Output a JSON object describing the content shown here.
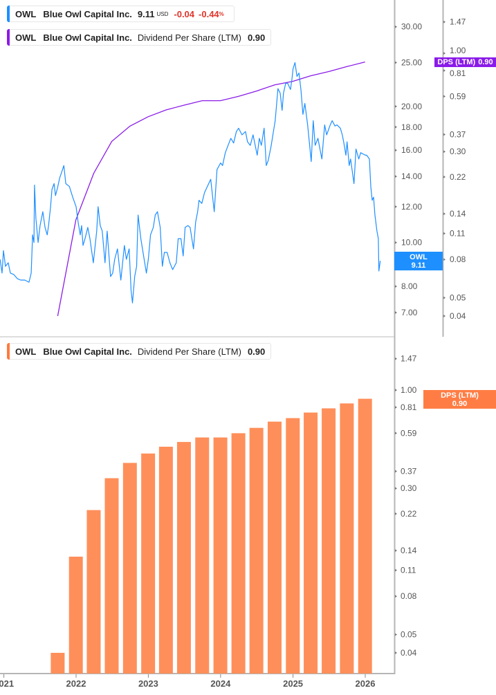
{
  "legends": {
    "price": {
      "ticker": "OWL",
      "company": "Blue Owl Capital Inc.",
      "price": "9.11",
      "currency": "USD",
      "change": "-0.04",
      "change_pct": "-0.44",
      "pct_sign": "%",
      "color": "#1e8fff"
    },
    "dps_top": {
      "ticker": "OWL",
      "company": "Blue Owl Capital Inc.",
      "metric": "Dividend Per Share (LTM)",
      "value": "0.90",
      "color": "#8a1be8"
    },
    "dps_bottom": {
      "ticker": "OWL",
      "company": "Blue Owl Capital Inc.",
      "metric": "Dividend Per Share (LTM)",
      "value": "0.90",
      "color": "#ff7a3d"
    }
  },
  "tags": {
    "price": {
      "label": "OWL",
      "value": "9.11",
      "color": "#1e8fff"
    },
    "dps_top": {
      "label": "DPS (LTM)",
      "value": "0.90",
      "color": "#8a1be8"
    },
    "dps_bottom": {
      "label": "DPS (LTM)",
      "value": "0.90",
      "color": "#ff7d45"
    }
  },
  "chart_data": [
    {
      "type": "line",
      "title": "",
      "scale": "log",
      "series": [
        {
          "name": "OWL",
          "color": "#1e8fff",
          "axis": "price",
          "points": [
            [
              "2020-12-13",
              9.18
            ],
            [
              "2020-12-23",
              8.56
            ],
            [
              "2020-12-30",
              9.6
            ],
            [
              "2021-01-09",
              8.86
            ],
            [
              "2021-01-23",
              9.02
            ],
            [
              "2021-02-03",
              8.56
            ],
            [
              "2021-02-20",
              8.5
            ],
            [
              "2021-03-10",
              8.32
            ],
            [
              "2021-03-27",
              8.26
            ],
            [
              "2021-04-17",
              8.26
            ],
            [
              "2021-05-08",
              8.17
            ],
            [
              "2021-05-19",
              8.56
            ],
            [
              "2021-05-26",
              10.4
            ],
            [
              "2021-06-02",
              10.0
            ],
            [
              "2021-06-05",
              13.4
            ],
            [
              "2021-06-12",
              11.3
            ],
            [
              "2021-06-23",
              10.0
            ],
            [
              "2021-07-03",
              10.9
            ],
            [
              "2021-07-17",
              11.7
            ],
            [
              "2021-07-28",
              10.8
            ],
            [
              "2021-08-08",
              10.4
            ],
            [
              "2021-08-15",
              10.9
            ],
            [
              "2021-08-25",
              12.0
            ],
            [
              "2021-09-01",
              13.1
            ],
            [
              "2021-09-12",
              13.5
            ],
            [
              "2021-09-19",
              12.7
            ],
            [
              "2021-09-29",
              13.2
            ],
            [
              "2021-10-10",
              13.9
            ],
            [
              "2021-10-20",
              14.3
            ],
            [
              "2021-10-31",
              14.8
            ],
            [
              "2021-11-10",
              13.5
            ],
            [
              "2021-11-28",
              13.3
            ],
            [
              "2021-12-15",
              12.6
            ],
            [
              "2022-01-01",
              12.0
            ],
            [
              "2022-01-11",
              11.1
            ],
            [
              "2022-01-22",
              10.4
            ],
            [
              "2022-01-29",
              10.9
            ],
            [
              "2022-02-05",
              9.85
            ],
            [
              "2022-02-15",
              10.2
            ],
            [
              "2022-03-01",
              10.8
            ],
            [
              "2022-03-12",
              10.2
            ],
            [
              "2022-03-29",
              9.02
            ],
            [
              "2022-04-15",
              10.6
            ],
            [
              "2022-04-22",
              12.0
            ],
            [
              "2022-05-03",
              10.9
            ],
            [
              "2022-05-13",
              10.6
            ],
            [
              "2022-05-27",
              9.02
            ],
            [
              "2022-06-07",
              10.6
            ],
            [
              "2022-06-24",
              8.41
            ],
            [
              "2022-07-05",
              8.56
            ],
            [
              "2022-07-15",
              9.18
            ],
            [
              "2022-07-29",
              9.68
            ],
            [
              "2022-08-15",
              8.26
            ],
            [
              "2022-09-02",
              9.85
            ],
            [
              "2022-09-12",
              9.18
            ],
            [
              "2022-09-26",
              9.68
            ],
            [
              "2022-10-06",
              7.83
            ],
            [
              "2022-10-13",
              7.35
            ],
            [
              "2022-10-24",
              8.41
            ],
            [
              "2022-11-03",
              8.86
            ],
            [
              "2022-11-10",
              11.5
            ],
            [
              "2022-11-24",
              10.2
            ],
            [
              "2022-12-08",
              9.34
            ],
            [
              "2022-12-22",
              8.56
            ],
            [
              "2023-01-01",
              9.18
            ],
            [
              "2023-01-12",
              10.4
            ],
            [
              "2023-01-26",
              10.8
            ],
            [
              "2023-02-05",
              11.5
            ],
            [
              "2023-02-16",
              11.7
            ],
            [
              "2023-03-02",
              10.8
            ],
            [
              "2023-03-13",
              8.86
            ],
            [
              "2023-03-23",
              9.51
            ],
            [
              "2023-04-06",
              9.51
            ],
            [
              "2023-04-20",
              9.02
            ],
            [
              "2023-05-04",
              8.71
            ],
            [
              "2023-05-22",
              9.02
            ],
            [
              "2023-06-01",
              10.2
            ],
            [
              "2023-06-15",
              10.2
            ],
            [
              "2023-06-26",
              9.34
            ],
            [
              "2023-07-06",
              10.8
            ],
            [
              "2023-07-20",
              10.9
            ],
            [
              "2023-07-31",
              10.8
            ],
            [
              "2023-08-17",
              9.68
            ],
            [
              "2023-08-28",
              11.1
            ],
            [
              "2023-09-07",
              11.7
            ],
            [
              "2023-09-14",
              12.4
            ],
            [
              "2023-09-28",
              12.2
            ],
            [
              "2023-10-12",
              12.9
            ],
            [
              "2023-10-26",
              13.3
            ],
            [
              "2023-11-12",
              13.8
            ],
            [
              "2023-11-30",
              11.7
            ],
            [
              "2023-12-14",
              14.5
            ],
            [
              "2024-01-01",
              15.0
            ],
            [
              "2024-01-11",
              14.8
            ],
            [
              "2024-01-25",
              15.8
            ],
            [
              "2024-02-08",
              16.4
            ],
            [
              "2024-02-22",
              17.0
            ],
            [
              "2024-03-07",
              16.6
            ],
            [
              "2024-03-21",
              17.6
            ],
            [
              "2024-04-01",
              17.9
            ],
            [
              "2024-04-18",
              17.3
            ],
            [
              "2024-05-06",
              17.6
            ],
            [
              "2024-05-16",
              16.7
            ],
            [
              "2024-05-30",
              16.4
            ],
            [
              "2024-06-13",
              17.3
            ],
            [
              "2024-07-04",
              15.6
            ],
            [
              "2024-07-15",
              17.0
            ],
            [
              "2024-07-25",
              16.4
            ],
            [
              "2024-08-08",
              17.9
            ],
            [
              "2024-08-19",
              14.8
            ],
            [
              "2024-08-29",
              15.2
            ],
            [
              "2024-09-12",
              16.3
            ],
            [
              "2024-09-23",
              17.5
            ],
            [
              "2024-10-03",
              18.6
            ],
            [
              "2024-10-17",
              21.9
            ],
            [
              "2024-10-28",
              21.4
            ],
            [
              "2024-11-07",
              19.6
            ],
            [
              "2024-11-14",
              21.4
            ],
            [
              "2024-11-25",
              22.5
            ],
            [
              "2024-12-05",
              22.5
            ],
            [
              "2024-12-19",
              21.8
            ],
            [
              "2024-12-26",
              22.9
            ],
            [
              "2025-01-01",
              24.2
            ],
            [
              "2025-01-11",
              25.0
            ],
            [
              "2025-01-21",
              23.3
            ],
            [
              "2025-01-31",
              23.7
            ],
            [
              "2025-02-10",
              21.8
            ],
            [
              "2025-02-20",
              19.2
            ],
            [
              "2025-03-02",
              20.3
            ],
            [
              "2025-03-16",
              18.2
            ],
            [
              "2025-04-03",
              15.1
            ],
            [
              "2025-04-13",
              18.6
            ],
            [
              "2025-04-23",
              16.4
            ],
            [
              "2025-05-07",
              17.0
            ],
            [
              "2025-05-17",
              16.1
            ],
            [
              "2025-05-27",
              15.3
            ],
            [
              "2025-06-10",
              18.2
            ],
            [
              "2025-06-20",
              17.3
            ],
            [
              "2025-07-08",
              18.2
            ],
            [
              "2025-07-18",
              18.6
            ],
            [
              "2025-08-01",
              18.1
            ],
            [
              "2025-08-11",
              18.2
            ],
            [
              "2025-08-28",
              17.9
            ],
            [
              "2025-09-07",
              17.3
            ],
            [
              "2025-09-14",
              16.7
            ],
            [
              "2025-09-25",
              15.6
            ],
            [
              "2025-10-01",
              16.7
            ],
            [
              "2025-10-12",
              14.8
            ],
            [
              "2025-10-19",
              15.3
            ],
            [
              "2025-11-05",
              13.5
            ],
            [
              "2025-11-15",
              16.1
            ],
            [
              "2025-11-29",
              15.3
            ],
            [
              "2025-12-09",
              15.8
            ],
            [
              "2026-01-01",
              15.6
            ],
            [
              "2026-01-08",
              15.6
            ],
            [
              "2026-01-22",
              15.3
            ],
            [
              "2026-01-29",
              13.3
            ],
            [
              "2026-02-05",
              12.4
            ],
            [
              "2026-02-12",
              12.6
            ],
            [
              "2026-02-19",
              11.5
            ],
            [
              "2026-03-01",
              10.6
            ],
            [
              "2026-03-08",
              10.2
            ],
            [
              "2026-03-11",
              8.65
            ],
            [
              "2026-03-18",
              9.11
            ]
          ]
        },
        {
          "name": "DPS (LTM)",
          "color": "#8a1be8",
          "axis": "dps",
          "ref": "dps"
        }
      ],
      "price_axis": {
        "ticks": [
          "30.00",
          "25.00",
          "20.00",
          "18.00",
          "16.00",
          "14.00",
          "12.00",
          "10.00",
          "8.00",
          "7.00"
        ]
      },
      "dps_axis": {
        "ticks": [
          "1.47",
          "1.00",
          "0.81",
          "0.59",
          "0.37",
          "0.30",
          "0.22",
          "0.14",
          "0.11",
          "0.08",
          "0.05",
          "0.04"
        ]
      }
    },
    {
      "type": "bar",
      "title": "",
      "scale": "log",
      "color": "#ff8f5a",
      "dates": [
        "2021-09-30",
        "2021-12-31",
        "2022-03-31",
        "2022-06-30",
        "2022-09-30",
        "2022-12-31",
        "2023-03-31",
        "2023-06-30",
        "2023-09-30",
        "2023-12-31",
        "2024-03-31",
        "2024-06-30",
        "2024-09-30",
        "2024-12-31",
        "2025-03-31",
        "2025-06-30",
        "2025-09-30",
        "2025-12-31"
      ],
      "values": [
        0.04,
        0.13,
        0.23,
        0.34,
        0.41,
        0.46,
        0.5,
        0.53,
        0.56,
        0.56,
        0.59,
        0.63,
        0.68,
        0.71,
        0.76,
        0.8,
        0.85,
        0.9
      ],
      "ticks": [
        "1.47",
        "1.00",
        "0.81",
        "0.59",
        "0.37",
        "0.30",
        "0.22",
        "0.14",
        "0.11",
        "0.08",
        "0.05",
        "0.04"
      ],
      "x_ticks": [
        "2021",
        "2022",
        "2023",
        "2024",
        "2025",
        "2026"
      ]
    }
  ]
}
